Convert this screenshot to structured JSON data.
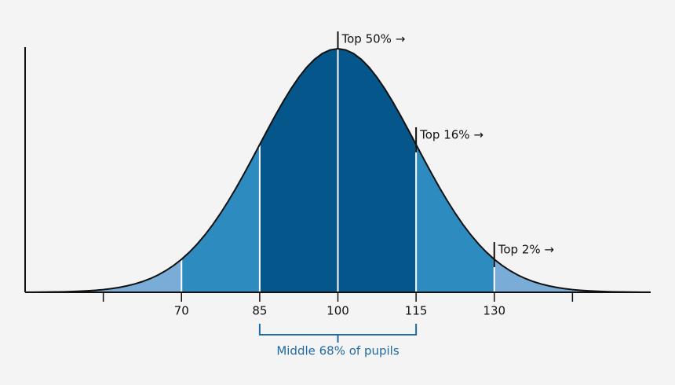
{
  "chart_data": {
    "type": "density",
    "mean": 100,
    "sd": 15,
    "xlim": [
      40,
      160
    ],
    "xticks": [
      {
        "value": 55,
        "label": null
      },
      70,
      85,
      100,
      115,
      130,
      {
        "value": 145,
        "label": null
      }
    ],
    "bands": [
      {
        "from": 40,
        "to": 70,
        "color": "#79acd6"
      },
      {
        "from": 70,
        "to": 85,
        "color": "#2d8bc0"
      },
      {
        "from": 85,
        "to": 115,
        "color": "#05578b"
      },
      {
        "from": 115,
        "to": 130,
        "color": "#2d8bc0"
      },
      {
        "from": 130,
        "to": 160,
        "color": "#79acd6"
      }
    ],
    "annotations": [
      {
        "text": "Top 50% →",
        "x": 100
      },
      {
        "text": "Top 16% →",
        "x": 115
      },
      {
        "text": "Top 2% →",
        "x": 130
      }
    ],
    "bracket": {
      "text": "Middle 68% of pupils",
      "from": 85,
      "to": 115,
      "color": "#1f6a9e"
    }
  }
}
